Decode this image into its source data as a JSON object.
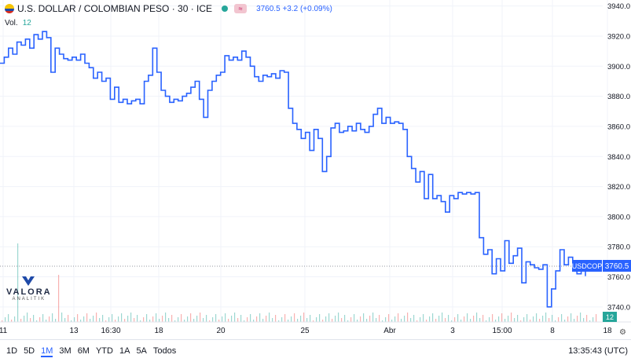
{
  "header": {
    "symbol_title": "U.S. DOLLAR / COLOMBIAN PESO · 30 · ICE",
    "badge": "≈",
    "price": "3760.5",
    "change": "+3.2 (+0.09%)"
  },
  "volume": {
    "label": "Vol.",
    "value": "12"
  },
  "colors": {
    "line": "#2962ff",
    "grid": "#f0f3fa",
    "volume": "#26a69a",
    "volume_down": "#ef5350",
    "tag_bg": "#2962ff"
  },
  "timeframes": [
    "1D",
    "5D",
    "1M",
    "3M",
    "6M",
    "YTD",
    "1A",
    "5A",
    "Todos"
  ],
  "active_timeframe": "1M",
  "clock": "13:35:43 (UTC)",
  "watermark": {
    "name": "VALORA",
    "sub": "ANALITIK"
  },
  "price_tag": {
    "symbol": "USDCOP",
    "value": "3760.5"
  },
  "chart_data": {
    "type": "line",
    "title": "U.S. DOLLAR / COLOMBIAN PESO · 30 · ICE",
    "ylim": [
      3730,
      3944
    ],
    "y_ticks": [
      3940.0,
      3920.0,
      3900.0,
      3880.0,
      3860.0,
      3840.0,
      3820.0,
      3800.0,
      3780.0,
      3760.0,
      3740.0
    ],
    "x_ticks": [
      "11",
      "13",
      "16:30",
      "18",
      "20",
      "25",
      "3",
      "15:00",
      "8",
      "18"
    ],
    "x_tick_labels_shown": [
      "11",
      "13",
      "16:30",
      "18",
      "20",
      "25",
      "Abr",
      "3",
      "15:00",
      "8",
      "18"
    ],
    "grid": true,
    "last_value": 3760.5,
    "series": [
      {
        "values": [
          3902,
          3906,
          3912,
          3908,
          3916,
          3914,
          3918,
          3912,
          3921,
          3918,
          3923,
          3919,
          3896,
          3912,
          3908,
          3905,
          3904,
          3906,
          3904,
          3908,
          3902,
          3899,
          3892,
          3896,
          3890,
          3892,
          3878,
          3886,
          3876,
          3878,
          3875,
          3877,
          3878,
          3875,
          3890,
          3894,
          3912,
          3896,
          3884,
          3880,
          3876,
          3878,
          3877,
          3880,
          3882,
          3886,
          3890,
          3878,
          3866,
          3884,
          3890,
          3894,
          3896,
          3907,
          3904,
          3906,
          3904,
          3910,
          3906,
          3900,
          3893,
          3890,
          3894,
          3893,
          3895,
          3892,
          3897,
          3896,
          3872,
          3862,
          3858,
          3852,
          3856,
          3844,
          3858,
          3852,
          3830,
          3840,
          3859,
          3862,
          3856,
          3857,
          3860,
          3857,
          3862,
          3858,
          3856,
          3860,
          3868,
          3872,
          3862,
          3866,
          3862,
          3863,
          3862,
          3858,
          3840,
          3832,
          3823,
          3830,
          3812,
          3828,
          3812,
          3814,
          3810,
          3803,
          3814,
          3812,
          3816,
          3815,
          3816,
          3815,
          3816,
          3786,
          3775,
          3778,
          3762,
          3772,
          3764,
          3784,
          3769,
          3774,
          3779,
          3756,
          3770,
          3768,
          3766,
          3765,
          3768,
          3740,
          3752,
          3764,
          3778,
          3768,
          3773,
          3765,
          3762,
          3765,
          3760.5
        ]
      }
    ]
  }
}
